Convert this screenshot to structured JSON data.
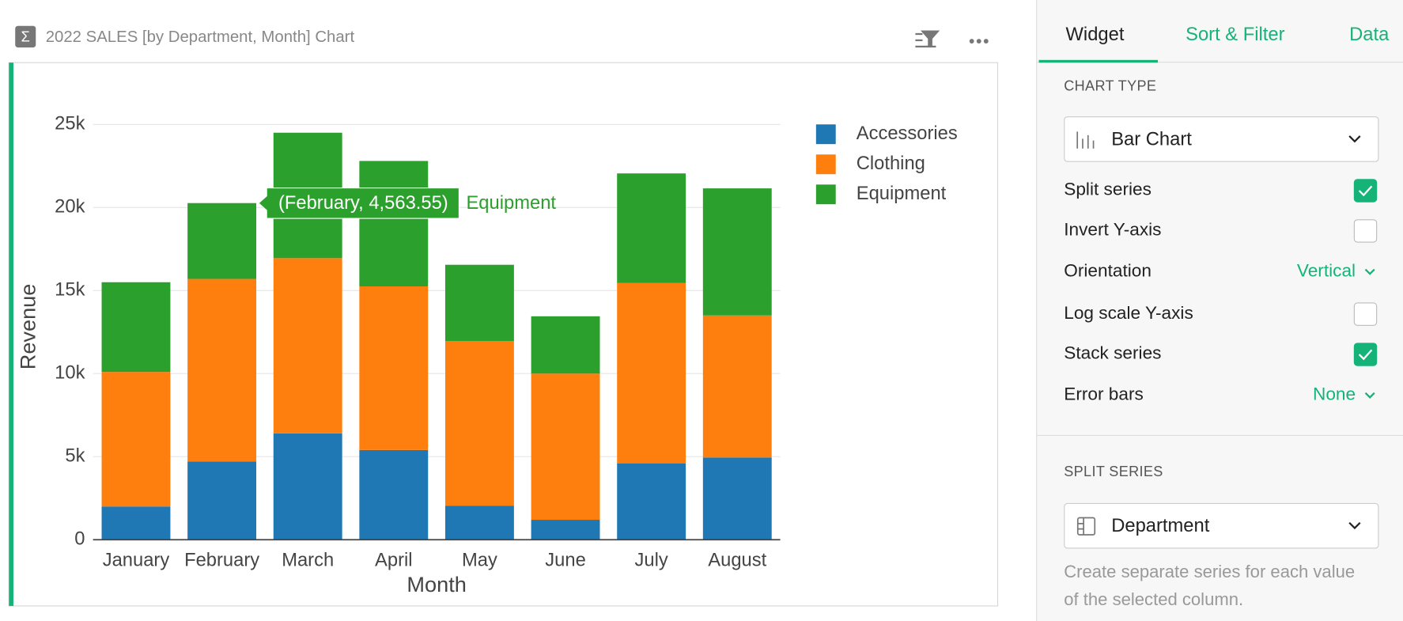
{
  "header": {
    "title": "2022 SALES [by Department, Month] Chart"
  },
  "chart_data": {
    "type": "bar",
    "stacked": true,
    "grid": true,
    "legend": "right",
    "x_label": "Month",
    "y_label": "Revenue",
    "categories": [
      "January",
      "February",
      "March",
      "April",
      "May",
      "June",
      "July",
      "August"
    ],
    "series": [
      {
        "name": "Accessories",
        "color": "#1f77b4",
        "values": [
          2000,
          4700,
          6400,
          5400,
          2050,
          1200,
          4600,
          4950
        ]
      },
      {
        "name": "Clothing",
        "color": "#ff7f0e",
        "values": [
          8100,
          11000,
          10550,
          9850,
          9900,
          8800,
          10850,
          8550
        ]
      },
      {
        "name": "Equipment",
        "color": "#2ca02c",
        "values": [
          5400,
          4563.55,
          7550,
          7550,
          4600,
          3450,
          6600,
          7650
        ]
      }
    ],
    "ylim": [
      0,
      25000
    ],
    "yticks": [
      0,
      {
        "value": 5000,
        "label": "5k"
      },
      {
        "value": 10000,
        "label": "10k"
      },
      {
        "value": 15000,
        "label": "15k"
      },
      {
        "value": 20000,
        "label": "20k"
      },
      {
        "value": 25000,
        "label": "25k"
      }
    ],
    "tooltip": {
      "text": "(February, 4,563.55)",
      "series": "Equipment"
    }
  },
  "panel": {
    "tabs": [
      "Widget",
      "Sort & Filter",
      "Data"
    ],
    "chart_type_heading": "CHART TYPE",
    "chart_type": "Bar Chart",
    "options": [
      {
        "label": "Split series",
        "checked": true
      },
      {
        "label": "Invert Y-axis",
        "checked": false
      },
      {
        "label": "Orientation",
        "choice": "Vertical"
      },
      {
        "label": "Log scale Y-axis",
        "checked": false
      },
      {
        "label": "Stack series",
        "checked": true
      },
      {
        "label": "Error bars",
        "choice": "None"
      }
    ],
    "split_heading": "SPLIT SERIES",
    "split_column": "Department",
    "help": "Create separate series for each value of the selected column."
  }
}
